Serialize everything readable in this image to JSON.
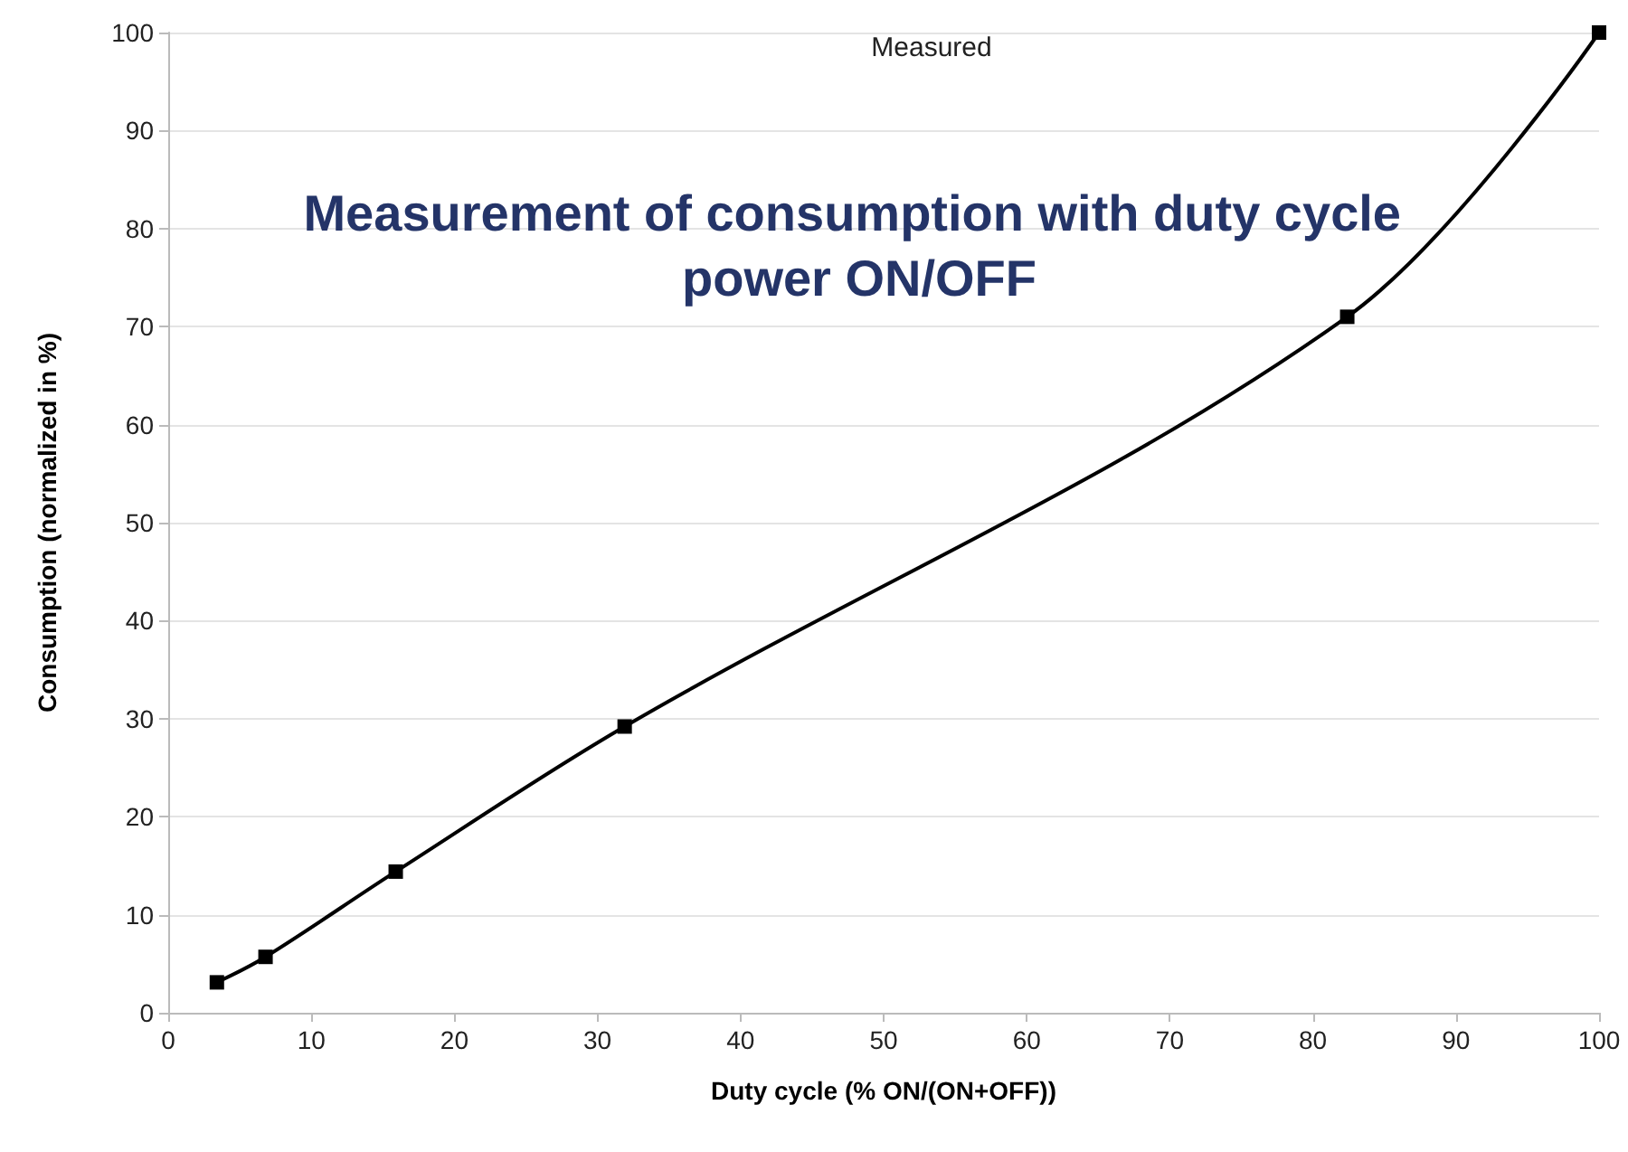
{
  "chart_data": {
    "type": "line",
    "title": "Measurement of consumption with duty cycle power ON/OFF",
    "subtitle": "Measured",
    "xlabel": "Duty cycle (% ON/(ON+OFF))",
    "ylabel": "Consumption (normalized in %)",
    "x": [
      3.4,
      6.8,
      15.9,
      31.9,
      82.4,
      100
    ],
    "series": [
      {
        "color": "#000000",
        "values": [
          3.1,
          5.7,
          14.4,
          29.2,
          71.0,
          100
        ]
      }
    ],
    "xlim": [
      0,
      100
    ],
    "ylim": [
      0,
      100
    ],
    "xticks": [
      0,
      10,
      20,
      30,
      40,
      50,
      60,
      70,
      80,
      90,
      100
    ],
    "yticks": [
      0,
      10,
      20,
      30,
      40,
      50,
      60,
      70,
      80,
      90,
      100
    ],
    "grid": "y",
    "marker": "square",
    "line_style": "solid"
  }
}
